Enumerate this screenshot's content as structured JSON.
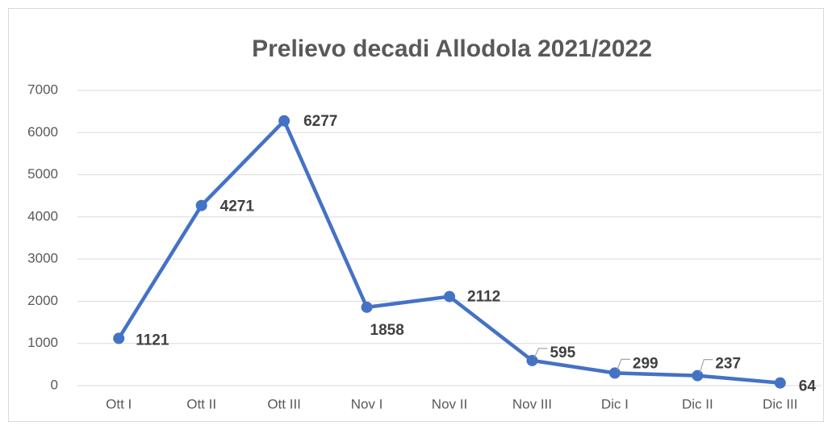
{
  "chart_data": {
    "type": "line",
    "title": "Prelievo decadi Allodola 2021/2022",
    "categories": [
      "Ott I",
      "Ott II",
      "Ott III",
      "Nov I",
      "Nov II",
      "Nov III",
      "Dic I",
      "Dic II",
      "Dic III"
    ],
    "values": [
      1121,
      4271,
      6277,
      1858,
      2112,
      595,
      299,
      237,
      64
    ],
    "color": "#4472c4",
    "ylim": [
      0,
      7000
    ],
    "yticks": [
      0,
      1000,
      2000,
      3000,
      4000,
      5000,
      6000,
      7000
    ],
    "grid": true
  }
}
